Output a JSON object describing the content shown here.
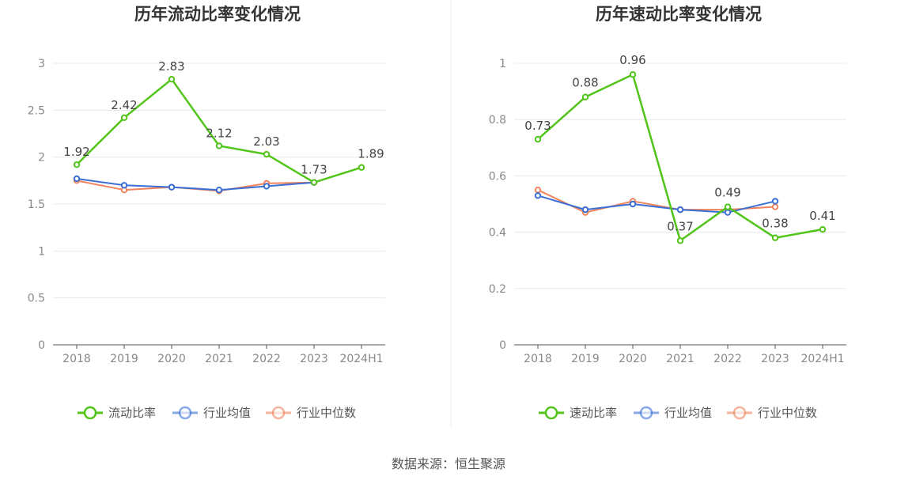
{
  "chart_data": [
    {
      "type": "line",
      "title": "历年流动比率变化情况",
      "categories": [
        "2018",
        "2019",
        "2020",
        "2021",
        "2022",
        "2023",
        "2024H1"
      ],
      "ylim": [
        0,
        3
      ],
      "yticks": [
        "0",
        "0.5",
        "1",
        "1.5",
        "2",
        "2.5",
        "3"
      ],
      "ytick_values": [
        0,
        0.5,
        1,
        1.5,
        2,
        2.5,
        3
      ],
      "series": [
        {
          "name": "流动比率",
          "color": "#52c41a",
          "values": [
            1.92,
            2.42,
            2.83,
            2.12,
            2.03,
            1.73,
            1.89
          ],
          "labels": [
            "1.92",
            "2.42",
            "2.83",
            "2.12",
            "2.03",
            "1.73",
            "1.89"
          ]
        },
        {
          "name": "行业均值",
          "color": "#3b6fd6",
          "values": [
            1.77,
            1.7,
            1.68,
            1.65,
            1.69,
            1.73,
            null
          ]
        },
        {
          "name": "行业中位数",
          "color": "#f0845c",
          "values": [
            1.75,
            1.65,
            1.68,
            1.64,
            1.72,
            1.73,
            null
          ]
        }
      ],
      "legend": [
        "流动比率",
        "行业均值",
        "行业中位数"
      ],
      "legend_position": "bottom",
      "grid": true
    },
    {
      "type": "line",
      "title": "历年速动比率变化情况",
      "categories": [
        "2018",
        "2019",
        "2020",
        "2021",
        "2022",
        "2023",
        "2024H1"
      ],
      "ylim": [
        0,
        1
      ],
      "yticks": [
        "0",
        "0.2",
        "0.4",
        "0.6",
        "0.8",
        "1"
      ],
      "ytick_values": [
        0,
        0.2,
        0.4,
        0.6,
        0.8,
        1
      ],
      "series": [
        {
          "name": "速动比率",
          "color": "#52c41a",
          "values": [
            0.73,
            0.88,
            0.96,
            0.37,
            0.49,
            0.38,
            0.41
          ],
          "labels": [
            "0.73",
            "0.88",
            "0.96",
            "0.37",
            "0.49",
            "0.38",
            "0.41"
          ]
        },
        {
          "name": "行业均值",
          "color": "#3b6fd6",
          "values": [
            0.53,
            0.48,
            0.5,
            0.48,
            0.47,
            0.51,
            null
          ]
        },
        {
          "name": "行业中位数",
          "color": "#f0845c",
          "values": [
            0.55,
            0.47,
            0.51,
            0.48,
            0.48,
            0.49,
            null
          ]
        }
      ],
      "legend": [
        "速动比率",
        "行业均值",
        "行业中位数"
      ],
      "legend_position": "bottom",
      "grid": true
    }
  ],
  "source": "数据来源：恒生聚源"
}
